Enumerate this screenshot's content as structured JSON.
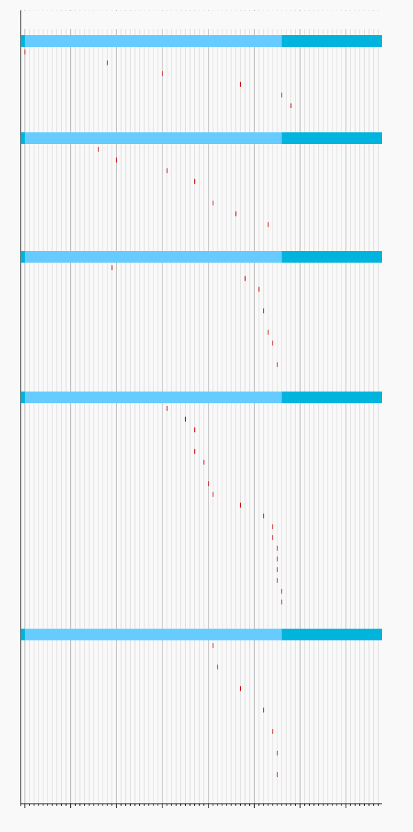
{
  "chart_data": {
    "type": "timeline",
    "xlim": [
      0,
      78
    ],
    "x_major_step": 10,
    "x_minor_step": 1,
    "grid": true,
    "colors": {
      "bar": "#66ccff",
      "bar_tail": "#00b4dd",
      "bar_head": "#00b4dd",
      "mark": "#cc0000",
      "grid_major": "#b0b0b0",
      "grid_minor": "#dddddd",
      "background": "#f9f9f9"
    },
    "groups": [
      {
        "bar_start": 0,
        "bar_split": 56,
        "bar_end": 78,
        "marks": [
          {
            "row": 0,
            "x": 0
          },
          {
            "row": 1,
            "x": 18
          },
          {
            "row": 2,
            "x": 30
          },
          {
            "row": 3,
            "x": 47
          },
          {
            "row": 4,
            "x": 56
          },
          {
            "row": 5,
            "x": 58
          }
        ]
      },
      {
        "bar_start": 0,
        "bar_split": 56,
        "bar_end": 78,
        "marks": [
          {
            "row": 0,
            "x": 16
          },
          {
            "row": 1,
            "x": 20
          },
          {
            "row": 2,
            "x": 31
          },
          {
            "row": 3,
            "x": 37
          },
          {
            "row": 5,
            "x": 41
          },
          {
            "row": 6,
            "x": 46
          },
          {
            "row": 7,
            "x": 53
          }
        ]
      },
      {
        "bar_start": 0,
        "bar_split": 56,
        "bar_end": 78,
        "marks": [
          {
            "row": 0,
            "x": 19
          },
          {
            "row": 1,
            "x": 48
          },
          {
            "row": 2,
            "x": 51
          },
          {
            "row": 4,
            "x": 52
          },
          {
            "row": 6,
            "x": 53
          },
          {
            "row": 7,
            "x": 54
          },
          {
            "row": 9,
            "x": 55
          }
        ]
      },
      {
        "bar_start": 0,
        "bar_split": 56,
        "bar_end": 78,
        "marks": [
          {
            "row": 0,
            "x": 31
          },
          {
            "row": 1,
            "x": 35
          },
          {
            "row": 2,
            "x": 37
          },
          {
            "row": 4,
            "x": 37
          },
          {
            "row": 5,
            "x": 39
          },
          {
            "row": 7,
            "x": 40
          },
          {
            "row": 8,
            "x": 41
          },
          {
            "row": 9,
            "x": 47
          },
          {
            "row": 10,
            "x": 52
          },
          {
            "row": 11,
            "x": 54
          },
          {
            "row": 12,
            "x": 54
          },
          {
            "row": 13,
            "x": 55
          },
          {
            "row": 14,
            "x": 55
          },
          {
            "row": 15,
            "x": 55
          },
          {
            "row": 16,
            "x": 55
          },
          {
            "row": 17,
            "x": 56
          },
          {
            "row": 18,
            "x": 56
          }
        ]
      },
      {
        "bar_start": 0,
        "bar_split": 56,
        "bar_end": 78,
        "marks": [
          {
            "row": 0,
            "x": 41
          },
          {
            "row": 2,
            "x": 42
          },
          {
            "row": 4,
            "x": 47
          },
          {
            "row": 6,
            "x": 52
          },
          {
            "row": 8,
            "x": 54
          },
          {
            "row": 10,
            "x": 55
          },
          {
            "row": 12,
            "x": 55
          }
        ]
      }
    ]
  }
}
